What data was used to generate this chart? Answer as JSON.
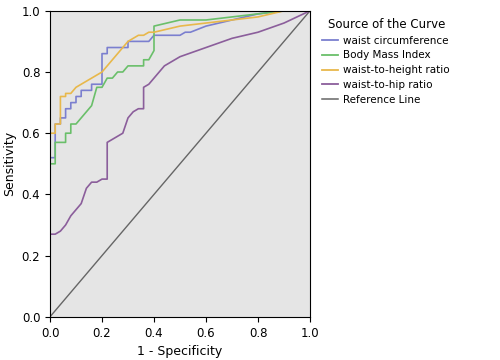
{
  "title": "",
  "xlabel": "1 - Specificity",
  "ylabel": "Sensitivity",
  "legend_title": "Source of the Curve",
  "xlim": [
    0.0,
    1.0
  ],
  "ylim": [
    0.0,
    1.0
  ],
  "xticks": [
    0.0,
    0.2,
    0.4,
    0.6,
    0.8,
    1.0
  ],
  "yticks": [
    0.0,
    0.2,
    0.4,
    0.6,
    0.8,
    1.0
  ],
  "bg_color": "#e5e5e5",
  "fig_color": "#ffffff",
  "curves": {
    "waist_circumference": {
      "color": "#7b7fcf",
      "label": "waist circumference",
      "x": [
        0.0,
        0.0,
        0.02,
        0.02,
        0.04,
        0.04,
        0.06,
        0.06,
        0.08,
        0.08,
        0.1,
        0.1,
        0.12,
        0.12,
        0.16,
        0.16,
        0.18,
        0.2,
        0.2,
        0.22,
        0.22,
        0.24,
        0.3,
        0.3,
        0.34,
        0.36,
        0.38,
        0.4,
        0.42,
        0.5,
        0.52,
        0.54,
        0.6,
        0.7,
        0.8,
        0.9,
        1.0
      ],
      "y": [
        0.0,
        0.52,
        0.52,
        0.63,
        0.63,
        0.65,
        0.65,
        0.68,
        0.68,
        0.7,
        0.7,
        0.72,
        0.72,
        0.74,
        0.74,
        0.76,
        0.76,
        0.76,
        0.86,
        0.86,
        0.88,
        0.88,
        0.88,
        0.9,
        0.9,
        0.9,
        0.9,
        0.92,
        0.92,
        0.92,
        0.93,
        0.93,
        0.95,
        0.97,
        0.99,
        1.0,
        1.0
      ]
    },
    "bmi": {
      "color": "#6abf6a",
      "label": "Body Mass Index",
      "x": [
        0.0,
        0.0,
        0.02,
        0.02,
        0.06,
        0.06,
        0.08,
        0.08,
        0.1,
        0.12,
        0.14,
        0.16,
        0.18,
        0.2,
        0.22,
        0.24,
        0.26,
        0.28,
        0.3,
        0.36,
        0.36,
        0.38,
        0.4,
        0.4,
        0.5,
        0.6,
        0.7,
        0.8,
        0.9,
        1.0
      ],
      "y": [
        0.0,
        0.5,
        0.5,
        0.57,
        0.57,
        0.6,
        0.6,
        0.63,
        0.63,
        0.65,
        0.67,
        0.69,
        0.75,
        0.75,
        0.78,
        0.78,
        0.8,
        0.8,
        0.82,
        0.82,
        0.84,
        0.84,
        0.87,
        0.95,
        0.97,
        0.97,
        0.98,
        0.99,
        1.0,
        1.0
      ]
    },
    "waist_height": {
      "color": "#e8b84b",
      "label": "waist-to-height ratio",
      "x": [
        0.0,
        0.0,
        0.02,
        0.02,
        0.04,
        0.04,
        0.06,
        0.06,
        0.08,
        0.1,
        0.12,
        0.14,
        0.16,
        0.18,
        0.2,
        0.22,
        0.24,
        0.26,
        0.28,
        0.3,
        0.32,
        0.34,
        0.36,
        0.38,
        0.4,
        0.45,
        0.5,
        0.6,
        0.7,
        0.8,
        0.9,
        1.0
      ],
      "y": [
        0.0,
        0.6,
        0.6,
        0.63,
        0.63,
        0.72,
        0.72,
        0.73,
        0.73,
        0.75,
        0.76,
        0.77,
        0.78,
        0.79,
        0.8,
        0.82,
        0.84,
        0.86,
        0.88,
        0.9,
        0.91,
        0.92,
        0.92,
        0.93,
        0.93,
        0.94,
        0.95,
        0.96,
        0.97,
        0.98,
        1.0,
        1.0
      ]
    },
    "waist_hip": {
      "color": "#8b5e9b",
      "label": "waist-to-hip ratio",
      "x": [
        0.0,
        0.0,
        0.02,
        0.04,
        0.06,
        0.08,
        0.1,
        0.12,
        0.14,
        0.16,
        0.18,
        0.2,
        0.22,
        0.22,
        0.24,
        0.26,
        0.28,
        0.3,
        0.32,
        0.34,
        0.36,
        0.36,
        0.38,
        0.4,
        0.42,
        0.44,
        0.46,
        0.5,
        0.6,
        0.7,
        0.8,
        0.9,
        1.0
      ],
      "y": [
        0.0,
        0.27,
        0.27,
        0.28,
        0.3,
        0.33,
        0.35,
        0.37,
        0.42,
        0.44,
        0.44,
        0.45,
        0.45,
        0.57,
        0.58,
        0.59,
        0.6,
        0.65,
        0.67,
        0.68,
        0.68,
        0.75,
        0.76,
        0.78,
        0.8,
        0.82,
        0.83,
        0.85,
        0.88,
        0.91,
        0.93,
        0.96,
        1.0
      ]
    },
    "reference": {
      "color": "#666666",
      "label": "Reference Line",
      "x": [
        0.0,
        1.0
      ],
      "y": [
        0.0,
        1.0
      ]
    }
  }
}
